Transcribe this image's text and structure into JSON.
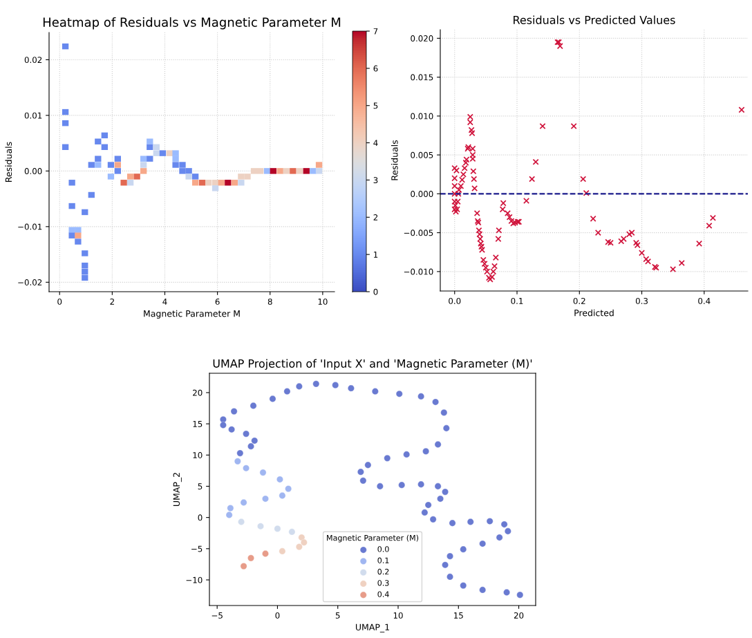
{
  "chart_data": [
    {
      "type": "scatter",
      "title": "Heatmap of Residuals vs Magnetic Parameter M",
      "xlabel": "Magnetic Parameter M",
      "ylabel": "Residuals",
      "marker": "square",
      "grid": true,
      "xlim": [
        -0.4,
        10.45
      ],
      "ylim": [
        -0.0217,
        0.0249
      ],
      "xticks": [
        0,
        2,
        4,
        6,
        8,
        10
      ],
      "yticks": [
        {
          "value": -0.02,
          "label": "−0.02"
        },
        {
          "value": -0.01,
          "label": "−0.01"
        },
        {
          "value": 0,
          "label": "0.00"
        },
        {
          "value": 0.01,
          "label": "0.01"
        },
        {
          "value": 0.02,
          "label": "0.02"
        }
      ],
      "clim": [
        0,
        7
      ],
      "cticks": [
        0,
        1,
        2,
        3,
        4,
        5,
        6,
        7
      ],
      "x": [
        0.22,
        0.22,
        0.22,
        0.22,
        0.47,
        0.47,
        0.47,
        0.7,
        0.47,
        0.7,
        0.7,
        0.96,
        0.96,
        0.96,
        0.96,
        0.96,
        1.21,
        1.21,
        1.46,
        1.46,
        1.46,
        1.71,
        1.71,
        1.95,
        1.95,
        2.21,
        2.21,
        2.21,
        2.44,
        2.69,
        2.69,
        2.94,
        3.19,
        3.19,
        3.19,
        3.43,
        3.43,
        3.43,
        3.68,
        3.68,
        3.92,
        4.18,
        4.41,
        4.41,
        4.41,
        4.67,
        4.67,
        4.91,
        4.91,
        5.16,
        5.16,
        5.42,
        5.66,
        5.92,
        5.92,
        6.15,
        6.4,
        6.65,
        6.9,
        6.9,
        7.14,
        7.39,
        7.63,
        7.89,
        8.12,
        8.38,
        8.62,
        8.87,
        9.13,
        9.38,
        9.63,
        9.86,
        9.86
      ],
      "values": [
        0.0224,
        0.0106,
        0.0086,
        0.0043,
        -0.0021,
        -0.0063,
        -0.0106,
        -0.0106,
        -0.0116,
        -0.0116,
        -0.0127,
        -0.0074,
        -0.0148,
        -0.017,
        -0.0181,
        -0.0192,
        -0.0043,
        0.0011,
        0.0022,
        0.0011,
        0.0053,
        0.0064,
        0.0043,
        0.0011,
        -0.001,
        0.0022,
        0.0011,
        0,
        -0.0021,
        -0.001,
        -0.0021,
        -0.001,
        0,
        0.0011,
        0.0022,
        0.0022,
        0.0043,
        0.0053,
        0.0043,
        0.0032,
        0.0032,
        0.0032,
        0.0032,
        0.0022,
        0.0011,
        0.0011,
        0,
        0,
        -0.001,
        -0.001,
        -0.0021,
        -0.0021,
        -0.0021,
        -0.0021,
        -0.0031,
        -0.0021,
        -0.0021,
        -0.0021,
        -0.0021,
        -0.001,
        -0.001,
        0,
        0,
        0,
        0,
        0,
        0,
        0,
        0,
        0,
        0,
        0,
        0.0011
      ],
      "cvalues": [
        1,
        1,
        1,
        1,
        1,
        1,
        2,
        2,
        1,
        5,
        1,
        1,
        1,
        1,
        1,
        1,
        1,
        1,
        1,
        2,
        1,
        1,
        1,
        1,
        2,
        1,
        5,
        1,
        6,
        5,
        3,
        6,
        5,
        3,
        2,
        1,
        1,
        2,
        3,
        3,
        1,
        4,
        2,
        2,
        1,
        1,
        1,
        1,
        3,
        1,
        5,
        6,
        4,
        4,
        3,
        5,
        7,
        5,
        3,
        4,
        4,
        4,
        4,
        2,
        7,
        5,
        4,
        6,
        4,
        7,
        2,
        3,
        5
      ]
    },
    {
      "type": "scatter",
      "title": "Residuals vs Predicted Values",
      "xlabel": "Predicted",
      "ylabel": "Residuals",
      "marker": "cross",
      "grid": true,
      "color": "#d0143c",
      "xlim": [
        -0.023,
        0.47
      ],
      "ylim": [
        -0.0125,
        0.0211
      ],
      "xticks": [
        {
          "value": 0,
          "label": "0.0"
        },
        0.1,
        0.2,
        0.3,
        0.4
      ],
      "yticks": [
        {
          "value": -0.01,
          "label": "−0.010"
        },
        {
          "value": -0.005,
          "label": "−0.005"
        },
        {
          "value": 0,
          "label": "0.000"
        },
        {
          "value": 0.005,
          "label": "0.005"
        },
        {
          "value": 0.01,
          "label": "0.010"
        },
        {
          "value": 0.015,
          "label": "0.015"
        },
        {
          "value": 0.02,
          "label": "0.020"
        }
      ],
      "ref_lines": [
        {
          "axis": "y",
          "value": 0,
          "color": "#1a1a8c",
          "line_style": "dashed"
        }
      ],
      "x": [
        0.0,
        0.0,
        0.0,
        0.0,
        0.0,
        0.0,
        0.002,
        0.004,
        0.005,
        0.006,
        0.003,
        0.001,
        0.007,
        0.01,
        0.012,
        0.014,
        0.016,
        0.018,
        0.019,
        0.021,
        0.022,
        0.025,
        0.025,
        0.027,
        0.028,
        0.029,
        0.029,
        0.029,
        0.03,
        0.031,
        0.032,
        0.036,
        0.037,
        0.038,
        0.039,
        0.04,
        0.041,
        0.042,
        0.043,
        0.044,
        0.046,
        0.048,
        0.05,
        0.052,
        0.055,
        0.057,
        0.06,
        0.062,
        0.064,
        0.066,
        0.07,
        0.071,
        0.077,
        0.078,
        0.085,
        0.088,
        0.091,
        0.094,
        0.097,
        0.101,
        0.103,
        0.115,
        0.124,
        0.13,
        0.141,
        0.165,
        0.167,
        0.169,
        0.191,
        0.206,
        0.211,
        0.222,
        0.23,
        0.246,
        0.25,
        0.267,
        0.271,
        0.28,
        0.284,
        0.291,
        0.293,
        0.3,
        0.307,
        0.31,
        0.321,
        0.323,
        0.35,
        0.364,
        0.392,
        0.408,
        0.414,
        0.46
      ],
      "values": [
        0.0033,
        0.002,
        0.001,
        0,
        -0.001,
        -0.002,
        -0.0023,
        -0.002,
        -0.001,
        0,
        0.003,
        -0.0015,
        0.0005,
        0.001,
        0.0018,
        0.0025,
        0.0033,
        0.004,
        0.0044,
        0.0058,
        0.006,
        0.0099,
        0.0092,
        0.0082,
        0.0078,
        0.0058,
        0.005,
        0.0045,
        0.0029,
        0.0019,
        0.0007,
        -0.0025,
        -0.0035,
        -0.0037,
        -0.0047,
        -0.0052,
        -0.0058,
        -0.0064,
        -0.0068,
        -0.0072,
        -0.0085,
        -0.009,
        -0.0095,
        -0.01,
        -0.0108,
        -0.011,
        -0.0107,
        -0.01,
        -0.0093,
        -0.0082,
        -0.0058,
        -0.0047,
        -0.002,
        -0.0012,
        -0.0025,
        -0.003,
        -0.0035,
        -0.0038,
        -0.0037,
        -0.0036,
        -0.0036,
        -0.0009,
        0.0019,
        0.0041,
        0.0087,
        0.0195,
        0.0195,
        0.019,
        0.0087,
        0.0019,
        0.0001,
        -0.0032,
        -0.005,
        -0.0062,
        -0.0063,
        -0.0061,
        -0.0058,
        -0.0052,
        -0.005,
        -0.0063,
        -0.0066,
        -0.0076,
        -0.0084,
        -0.0087,
        -0.0094,
        -0.0095,
        -0.0097,
        -0.0089,
        -0.0064,
        -0.0041,
        -0.0031,
        0.0108
      ]
    },
    {
      "type": "scatter",
      "title": "UMAP Projection of 'Input X' and 'Magnetic Parameter (M)'",
      "xlabel": "UMAP_1",
      "ylabel": "UMAP_2",
      "marker": "circle",
      "legend": "bottom",
      "legend_title": "Magnetic Parameter (M)",
      "xlim": [
        -5.64,
        21.4
      ],
      "ylim": [
        -14.1,
        23.1
      ],
      "xticks": [
        {
          "value": -5,
          "label": "−5"
        },
        0,
        5,
        10,
        15,
        20
      ],
      "yticks": [
        {
          "value": -10,
          "label": "−10"
        },
        {
          "value": -5,
          "label": "−5"
        },
        0,
        5,
        10,
        15,
        20
      ],
      "series": [
        {
          "name": "0.0",
          "color": "#4f63c9",
          "x": [
            20.1,
            19.0,
            17.0,
            15.4,
            14.3,
            13.9,
            14.3,
            15.4,
            17.0,
            18.4,
            19.1,
            18.8,
            17.6,
            16.0,
            14.5,
            12.9,
            12.2,
            12.5,
            13.5,
            13.9,
            13.3,
            11.9,
            10.3,
            8.5,
            7.1,
            6.9,
            7.5,
            9.1,
            10.7,
            12.3,
            13.3,
            14.0,
            13.8,
            13.1,
            11.9,
            10.1,
            8.1,
            6.1,
            4.8,
            3.2,
            1.8,
            0.8,
            -0.4,
            -2.0,
            -3.6,
            -4.5,
            -4.5,
            -3.8,
            -2.6,
            -1.9,
            -2.2,
            -3.1
          ],
          "values": [
            -12.4,
            -12.0,
            -11.6,
            -10.9,
            -9.5,
            -7.6,
            -6.2,
            -5.1,
            -4.2,
            -3.2,
            -2.2,
            -1.1,
            -0.6,
            -0.7,
            -0.9,
            -0.3,
            0.8,
            2.0,
            3.0,
            4.1,
            5.0,
            5.3,
            5.2,
            5.0,
            5.9,
            7.3,
            8.4,
            9.5,
            10.1,
            10.6,
            11.7,
            14.3,
            16.8,
            18.5,
            19.4,
            19.8,
            20.2,
            20.7,
            21.2,
            21.4,
            21.0,
            20.2,
            19.0,
            17.9,
            17.0,
            15.7,
            14.8,
            14.1,
            13.4,
            12.3,
            11.4,
            10.3
          ]
        },
        {
          "name": "0.1",
          "color": "#8fa9ef",
          "x": [
            -3.3,
            -2.6,
            -1.2,
            0.2,
            0.9,
            0.4,
            -1.0,
            -2.8,
            -3.9,
            -4.0
          ],
          "values": [
            9.0,
            7.9,
            7.2,
            6.1,
            4.6,
            3.5,
            3.0,
            2.4,
            1.5,
            0.4
          ]
        },
        {
          "name": "0.2",
          "color": "#c9d6ea",
          "x": [
            -3.0,
            -1.4,
            0.0,
            1.2
          ],
          "values": [
            -0.7,
            -1.4,
            -1.8,
            -2.3
          ]
        },
        {
          "name": "0.3",
          "color": "#ecc9b6",
          "x": [
            2.0,
            2.2,
            1.8,
            0.4
          ],
          "values": [
            -3.2,
            -4.0,
            -4.7,
            -5.4
          ]
        },
        {
          "name": "0.4",
          "color": "#e38b74",
          "x": [
            -1.0,
            -2.2,
            -2.8
          ],
          "values": [
            -5.8,
            -6.5,
            -7.8
          ]
        }
      ]
    }
  ]
}
